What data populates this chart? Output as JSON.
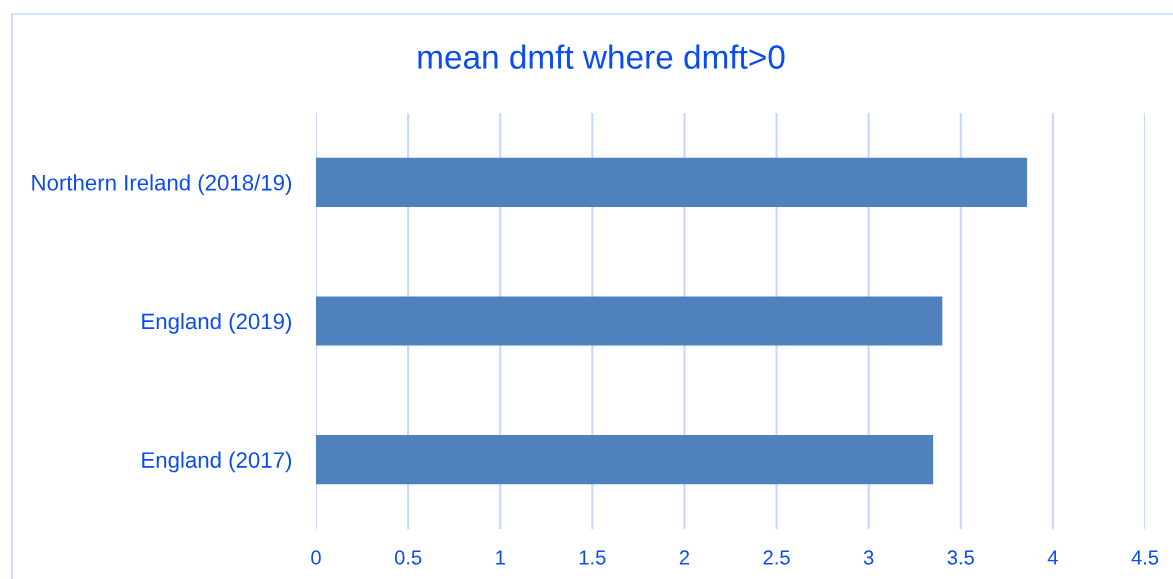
{
  "chart_data": {
    "type": "bar",
    "orientation": "horizontal",
    "title": "mean dmft where dmft>0",
    "categories": [
      "Northern Ireland (2018/19)",
      "England (2019)",
      "England (2017)"
    ],
    "values": [
      3.86,
      3.4,
      3.35
    ],
    "color": "#4f81bd",
    "xlim": [
      0,
      4.5
    ],
    "xticks": [
      0,
      0.5,
      1,
      1.5,
      2,
      2.5,
      3,
      3.5,
      4,
      4.5
    ],
    "grid": "x"
  }
}
